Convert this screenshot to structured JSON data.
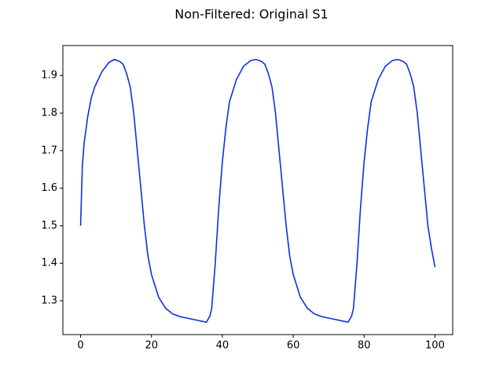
{
  "chart_data": {
    "type": "line",
    "title": "Non-Filtered: Original S1",
    "x": [
      0,
      0.5,
      1,
      2,
      3,
      4,
      6,
      8,
      9.5,
      11,
      12,
      13,
      14,
      15,
      16,
      17,
      18,
      19,
      20,
      22,
      24,
      26,
      28,
      30,
      32,
      34,
      35.5,
      36.5,
      37,
      38,
      39,
      40,
      41,
      42,
      44,
      46,
      48,
      49.5,
      51,
      52,
      53,
      54,
      55,
      56,
      57,
      58,
      59,
      60,
      62,
      64,
      66,
      68,
      70,
      72,
      74,
      75.5,
      76.5,
      77,
      78,
      79,
      80,
      81,
      82,
      84,
      86,
      88,
      89.5,
      91,
      92,
      93,
      94,
      95,
      96,
      97,
      98,
      99,
      100
    ],
    "series": [
      {
        "name": "S1",
        "color": "#0a32e0",
        "values": [
          1.5,
          1.66,
          1.72,
          1.79,
          1.84,
          1.87,
          1.91,
          1.935,
          1.943,
          1.938,
          1.93,
          1.905,
          1.87,
          1.8,
          1.7,
          1.6,
          1.5,
          1.42,
          1.37,
          1.31,
          1.28,
          1.265,
          1.258,
          1.254,
          1.25,
          1.246,
          1.243,
          1.26,
          1.28,
          1.4,
          1.55,
          1.67,
          1.76,
          1.83,
          1.89,
          1.925,
          1.94,
          1.943,
          1.938,
          1.93,
          1.905,
          1.87,
          1.8,
          1.7,
          1.6,
          1.5,
          1.42,
          1.37,
          1.31,
          1.28,
          1.265,
          1.258,
          1.254,
          1.25,
          1.246,
          1.243,
          1.26,
          1.28,
          1.4,
          1.55,
          1.67,
          1.76,
          1.83,
          1.89,
          1.925,
          1.94,
          1.943,
          1.938,
          1.93,
          1.905,
          1.87,
          1.8,
          1.7,
          1.6,
          1.5,
          1.44,
          1.39
        ]
      }
    ],
    "xlim": [
      -5,
      105
    ],
    "ylim": [
      1.21,
      1.98
    ],
    "xticks": [
      0,
      20,
      40,
      60,
      80,
      100
    ],
    "yticks": [
      1.3,
      1.4,
      1.5,
      1.6,
      1.7,
      1.8,
      1.9
    ]
  }
}
